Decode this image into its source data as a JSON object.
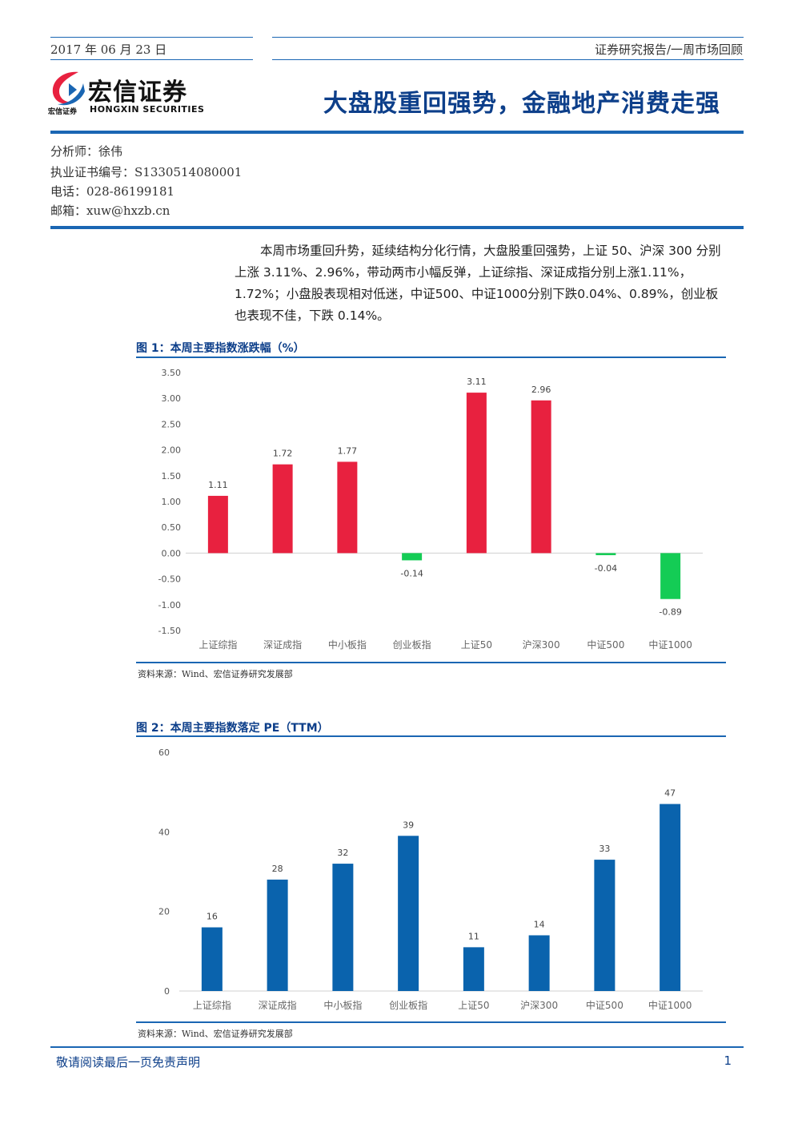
{
  "header": {
    "date": "2017 年 06 月 23 日",
    "category": "证券研究报告/一周市场回顾",
    "logo_cn": "宏信证券",
    "logo_en": "HONGXIN SECURITIES",
    "logo_small": "宏信证券",
    "title": "大盘股重回强势，金融地产消费走强"
  },
  "analyst": {
    "name_line": "分析师：徐伟",
    "cert_line": "执业证书编号：S1330514080001",
    "phone_line": "电话：028-86199181",
    "email_line": "邮箱：xuw@hxzb.cn"
  },
  "summary": "本周市场重回升势，延续结构分化行情，大盘股重回强势，上证 50、沪深 300 分别上涨 3.11%、2.96%，带动两市小幅反弹，上证综指、深证成指分别上涨1.11%，1.72%；小盘股表现相对低迷，中证500、中证1000分别下跌0.04%、0.89%，创业板也表现不佳，下跌 0.14%。",
  "figure1": {
    "title": "图 1：本周主要指数涨跌幅（%）",
    "source": "资料来源：Wind、宏信证券研究发展部"
  },
  "figure2": {
    "title": "图 2：本周主要指数落定 PE（TTM）",
    "source": "资料来源：Wind、宏信证券研究发展部"
  },
  "footer": {
    "disclaimer": "敬请阅读最后一页免责声明",
    "page": "1"
  },
  "colors": {
    "positive": "#e8213f",
    "negative": "#14cc55",
    "pe_bar": "#0a63ad",
    "accent": "#1a66b3",
    "title": "#0d3f8a"
  },
  "chart_data": [
    {
      "type": "bar",
      "title": "图 1：本周主要指数涨跌幅（%）",
      "categories": [
        "上证综指",
        "深证成指",
        "中小板指",
        "创业板指",
        "上证50",
        "沪深300",
        "中证500",
        "中证1000"
      ],
      "values": [
        1.11,
        1.72,
        1.77,
        -0.14,
        3.11,
        2.96,
        -0.04,
        -0.89
      ],
      "data_labels": [
        "1.11",
        "1.72",
        "1.77",
        "-0.14",
        "3.11",
        "2.96",
        "-0.04",
        "-0.89"
      ],
      "yticks": [
        "3.50",
        "3.00",
        "2.50",
        "2.00",
        "1.50",
        "1.00",
        "0.50",
        "0.00",
        "-0.50",
        "-1.00",
        "-1.50"
      ],
      "ylim": [
        -1.5,
        3.5
      ],
      "grid": false
    },
    {
      "type": "bar",
      "title": "图 2：本周主要指数落定 PE（TTM）",
      "categories": [
        "上证综指",
        "深证成指",
        "中小板指",
        "创业板指",
        "上证50",
        "沪深300",
        "中证500",
        "中证1000"
      ],
      "values": [
        16,
        28,
        32,
        39,
        11,
        14,
        33,
        47
      ],
      "data_labels": [
        "16",
        "28",
        "32",
        "39",
        "11",
        "14",
        "33",
        "47"
      ],
      "yticks": [
        "60",
        "40",
        "20",
        "0"
      ],
      "ylim": [
        0,
        60
      ],
      "grid": false
    }
  ]
}
